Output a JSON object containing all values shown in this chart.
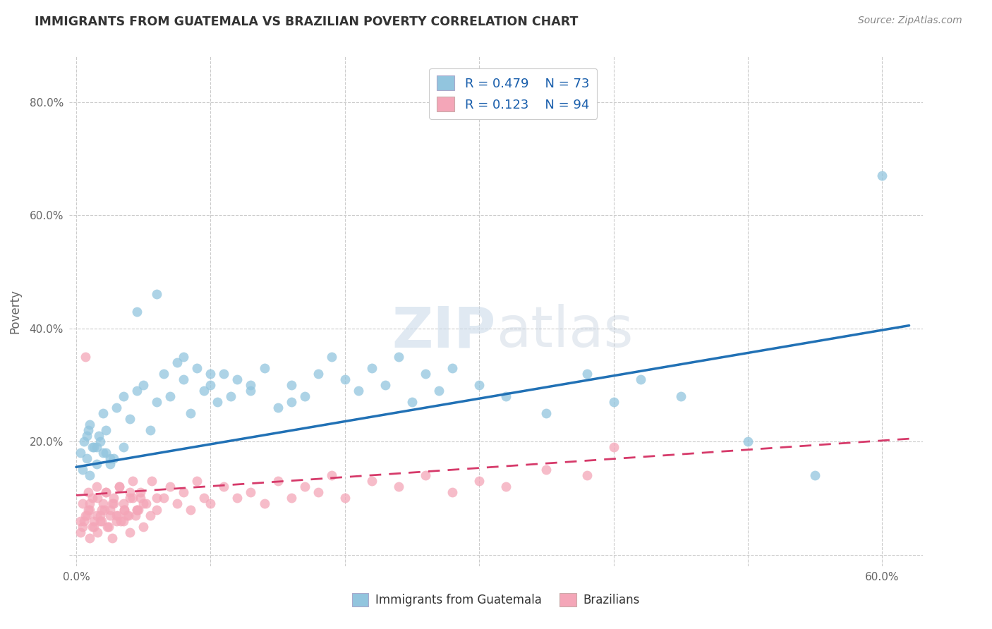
{
  "title": "IMMIGRANTS FROM GUATEMALA VS BRAZILIAN POVERTY CORRELATION CHART",
  "source": "Source: ZipAtlas.com",
  "xlabel_legend": "Immigrants from Guatemala",
  "ylabel": "Poverty",
  "legend_line1_R": "0.479",
  "legend_line1_N": "73",
  "legend_line2_R": "0.123",
  "legend_line2_N": "94",
  "blue_color": "#92c5de",
  "pink_color": "#f4a6b8",
  "blue_line_color": "#2171b5",
  "pink_line_color": "#d63a6a",
  "xlim": [
    -0.005,
    0.63
  ],
  "ylim": [
    -0.02,
    0.88
  ],
  "watermark": "ZIPatlas",
  "blue_x": [
    0.005,
    0.008,
    0.01,
    0.012,
    0.015,
    0.018,
    0.02,
    0.022,
    0.025,
    0.008,
    0.01,
    0.015,
    0.02,
    0.025,
    0.03,
    0.035,
    0.04,
    0.045,
    0.05,
    0.055,
    0.06,
    0.065,
    0.07,
    0.075,
    0.08,
    0.085,
    0.09,
    0.095,
    0.1,
    0.105,
    0.11,
    0.115,
    0.12,
    0.13,
    0.14,
    0.15,
    0.16,
    0.17,
    0.18,
    0.19,
    0.2,
    0.21,
    0.22,
    0.23,
    0.24,
    0.25,
    0.26,
    0.27,
    0.28,
    0.3,
    0.32,
    0.35,
    0.38,
    0.4,
    0.42,
    0.45,
    0.5,
    0.55,
    0.6,
    0.003,
    0.006,
    0.009,
    0.013,
    0.017,
    0.022,
    0.028,
    0.035,
    0.045,
    0.06,
    0.08,
    0.1,
    0.13,
    0.16
  ],
  "blue_y": [
    0.15,
    0.17,
    0.14,
    0.19,
    0.16,
    0.2,
    0.18,
    0.22,
    0.17,
    0.21,
    0.23,
    0.19,
    0.25,
    0.16,
    0.26,
    0.28,
    0.24,
    0.29,
    0.3,
    0.22,
    0.27,
    0.32,
    0.28,
    0.34,
    0.31,
    0.25,
    0.33,
    0.29,
    0.3,
    0.27,
    0.32,
    0.28,
    0.31,
    0.29,
    0.33,
    0.26,
    0.3,
    0.28,
    0.32,
    0.35,
    0.31,
    0.29,
    0.33,
    0.3,
    0.35,
    0.27,
    0.32,
    0.29,
    0.33,
    0.3,
    0.28,
    0.25,
    0.32,
    0.27,
    0.31,
    0.28,
    0.2,
    0.14,
    0.67,
    0.18,
    0.2,
    0.22,
    0.19,
    0.21,
    0.18,
    0.17,
    0.19,
    0.43,
    0.46,
    0.35,
    0.32,
    0.3,
    0.27
  ],
  "pink_x": [
    0.003,
    0.005,
    0.007,
    0.009,
    0.01,
    0.012,
    0.015,
    0.018,
    0.02,
    0.022,
    0.025,
    0.028,
    0.03,
    0.032,
    0.035,
    0.038,
    0.04,
    0.042,
    0.045,
    0.048,
    0.005,
    0.008,
    0.01,
    0.013,
    0.016,
    0.019,
    0.022,
    0.025,
    0.028,
    0.032,
    0.036,
    0.04,
    0.044,
    0.048,
    0.052,
    0.056,
    0.06,
    0.065,
    0.07,
    0.075,
    0.08,
    0.085,
    0.09,
    0.095,
    0.1,
    0.11,
    0.12,
    0.13,
    0.14,
    0.15,
    0.16,
    0.17,
    0.18,
    0.19,
    0.2,
    0.22,
    0.24,
    0.26,
    0.28,
    0.3,
    0.32,
    0.35,
    0.38,
    0.4,
    0.003,
    0.006,
    0.009,
    0.012,
    0.015,
    0.018,
    0.021,
    0.024,
    0.027,
    0.03,
    0.033,
    0.036,
    0.039,
    0.042,
    0.046,
    0.05,
    0.055,
    0.06,
    0.007,
    0.01,
    0.013,
    0.016,
    0.019,
    0.023,
    0.027,
    0.031,
    0.035,
    0.04,
    0.045,
    0.05
  ],
  "pink_y": [
    0.06,
    0.09,
    0.07,
    0.11,
    0.08,
    0.1,
    0.12,
    0.07,
    0.09,
    0.11,
    0.08,
    0.1,
    0.06,
    0.12,
    0.09,
    0.07,
    0.11,
    0.13,
    0.08,
    0.1,
    0.05,
    0.07,
    0.09,
    0.06,
    0.1,
    0.08,
    0.11,
    0.07,
    0.09,
    0.12,
    0.08,
    0.1,
    0.07,
    0.11,
    0.09,
    0.13,
    0.08,
    0.1,
    0.12,
    0.09,
    0.11,
    0.08,
    0.13,
    0.1,
    0.09,
    0.12,
    0.1,
    0.11,
    0.09,
    0.13,
    0.1,
    0.12,
    0.11,
    0.14,
    0.1,
    0.13,
    0.12,
    0.14,
    0.11,
    0.13,
    0.12,
    0.15,
    0.14,
    0.19,
    0.04,
    0.06,
    0.08,
    0.05,
    0.07,
    0.06,
    0.08,
    0.05,
    0.09,
    0.07,
    0.06,
    0.08,
    0.07,
    0.1,
    0.08,
    0.09,
    0.07,
    0.1,
    0.35,
    0.03,
    0.05,
    0.04,
    0.06,
    0.05,
    0.03,
    0.07,
    0.06,
    0.04,
    0.08,
    0.05
  ]
}
